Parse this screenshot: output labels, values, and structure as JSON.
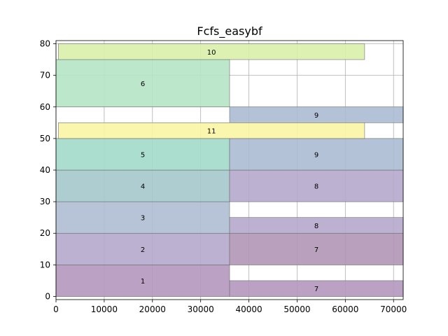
{
  "chart_data": {
    "type": "gantt",
    "title": "Fcfs_easybf",
    "xlim": [
      0,
      72000
    ],
    "ylim": [
      -1,
      81
    ],
    "x_ticks": [
      0,
      10000,
      20000,
      30000,
      40000,
      50000,
      60000,
      70000
    ],
    "y_ticks": [
      0,
      10,
      20,
      30,
      40,
      50,
      60,
      70,
      80
    ],
    "grid": true,
    "jobs": [
      {
        "label": "1",
        "start": 0,
        "end": 36000,
        "y0": 0,
        "y1": 10,
        "color": "#b497bd"
      },
      {
        "label": "2",
        "start": 0,
        "end": 36000,
        "y0": 10,
        "y1": 20,
        "color": "#b5a9cc"
      },
      {
        "label": "3",
        "start": 0,
        "end": 36000,
        "y0": 20,
        "y1": 30,
        "color": "#afbcd3"
      },
      {
        "label": "4",
        "start": 0,
        "end": 36000,
        "y0": 30,
        "y1": 40,
        "color": "#a5c8cc"
      },
      {
        "label": "5",
        "start": 0,
        "end": 36000,
        "y0": 40,
        "y1": 50,
        "color": "#a3dacb"
      },
      {
        "label": "6",
        "start": 0,
        "end": 36000,
        "y0": 60,
        "y1": 75,
        "color": "#b6e4c5"
      },
      {
        "label": "7",
        "start": 36000,
        "end": 72000,
        "y0": 0,
        "y1": 5,
        "color": "#b497bd"
      },
      {
        "label": "7",
        "start": 36000,
        "end": 72000,
        "y0": 10,
        "y1": 20,
        "color": "#b196b6"
      },
      {
        "label": "8",
        "start": 36000,
        "end": 72000,
        "y0": 20,
        "y1": 25,
        "color": "#b5a9cc"
      },
      {
        "label": "8",
        "start": 36000,
        "end": 72000,
        "y0": 30,
        "y1": 40,
        "color": "#b5a9cc"
      },
      {
        "label": "9",
        "start": 36000,
        "end": 72000,
        "y0": 40,
        "y1": 50,
        "color": "#abbbd3"
      },
      {
        "label": "9",
        "start": 36000,
        "end": 72000,
        "y0": 55,
        "y1": 60,
        "color": "#abbbd3"
      },
      {
        "label": "10",
        "start": 500,
        "end": 64000,
        "y0": 75,
        "y1": 80,
        "color": "#d9efaa"
      },
      {
        "label": "11",
        "start": 500,
        "end": 64000,
        "y0": 50,
        "y1": 55,
        "color": "#fbf5a4"
      }
    ]
  }
}
